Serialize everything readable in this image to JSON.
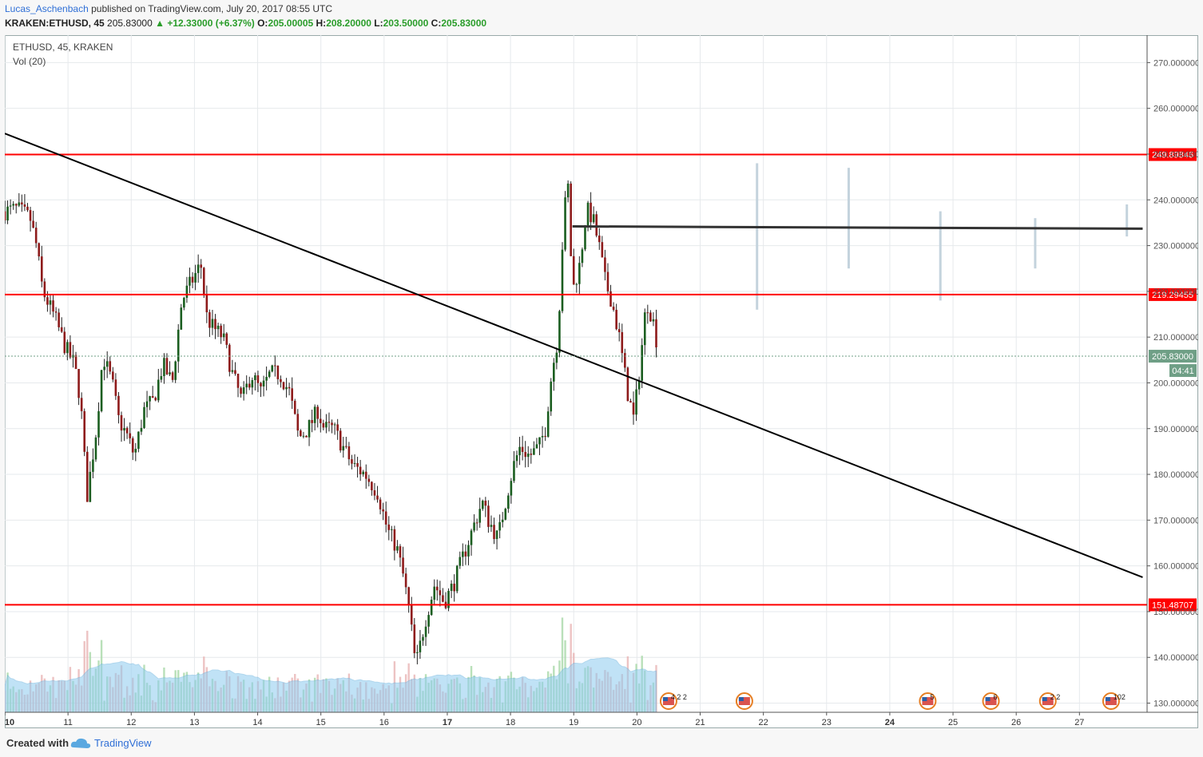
{
  "header": {
    "author": "Lucas_Aschenbach",
    "published_text": "published on TradingView.com, July 20, 2017 08:55 UTC",
    "symbol_line": "KRAKEN:ETHUSD, 45",
    "last": "205.83000",
    "change": "▲ +12.33000 (+6.37%)",
    "o_label": "O:",
    "o": "205.00005",
    "h_label": "H:",
    "h": "208.20000",
    "l_label": "L:",
    "l": "203.50000",
    "c_label": "C:",
    "c": "205.83000"
  },
  "legend": {
    "title": "ETHUSD, 45, KRAKEN",
    "volume": "Vol (20)"
  },
  "footer": {
    "created_with": "Created with",
    "brand": "TradingView"
  },
  "colors": {
    "up": "#1b5e20",
    "down": "#8e1b1b",
    "hline": "#ff0000",
    "trendline": "#000000",
    "resistance": "#333333",
    "vol_area": "#8ecbf0",
    "price_label_bg": "#6f9f86"
  },
  "chart_data": {
    "type": "candlestick",
    "y_axis": {
      "min": 128,
      "max": 276,
      "ticks": [
        "270.000000",
        "260.000000",
        "250.000000",
        "240.000000",
        "230.000000",
        "220.000000",
        "210.000000",
        "200.000000",
        "190.000000",
        "180.000000",
        "170.000000",
        "160.000000",
        "150.000000",
        "140.000000",
        "130.000000"
      ]
    },
    "x_axis": {
      "labels": [
        "10",
        "11",
        "12",
        "13",
        "14",
        "15",
        "16",
        "17",
        "18",
        "19",
        "20",
        "21",
        "22",
        "23",
        "24",
        "25",
        "26",
        "27"
      ],
      "bold_labels": [
        "10",
        "17",
        "24"
      ]
    },
    "horizontal_lines": [
      {
        "label": "249.89846",
        "value": 249.89846
      },
      {
        "label": "219.29455",
        "value": 219.29455
      },
      {
        "label": "151.48707",
        "value": 151.48707
      }
    ],
    "resistance_line": {
      "from": [
        18.98,
        234.2
      ],
      "to": [
        28.0,
        233.7
      ]
    },
    "trend_line": {
      "from": [
        10.0,
        254.5
      ],
      "to": [
        28.0,
        157.5
      ]
    },
    "current_price": {
      "label": "205.83000",
      "value": 205.83,
      "countdown": "04:41"
    },
    "price_path": [
      [
        10.0,
        237.5
      ],
      [
        10.2,
        238
      ],
      [
        10.4,
        236
      ],
      [
        10.5,
        230
      ],
      [
        10.6,
        220
      ],
      [
        10.8,
        214
      ],
      [
        10.95,
        208
      ],
      [
        11.1,
        204
      ],
      [
        11.2,
        196
      ],
      [
        11.3,
        175
      ],
      [
        11.45,
        190
      ],
      [
        11.55,
        206
      ],
      [
        11.7,
        200
      ],
      [
        11.8,
        192
      ],
      [
        11.95,
        188
      ],
      [
        12.05,
        184
      ],
      [
        12.2,
        194
      ],
      [
        12.35,
        196
      ],
      [
        12.5,
        204
      ],
      [
        12.65,
        200
      ],
      [
        12.8,
        218
      ],
      [
        12.95,
        222
      ],
      [
        13.1,
        226
      ],
      [
        13.2,
        214
      ],
      [
        13.3,
        212
      ],
      [
        13.45,
        210
      ],
      [
        13.6,
        202
      ],
      [
        13.75,
        196
      ],
      [
        13.9,
        202
      ],
      [
        14.05,
        198
      ],
      [
        14.2,
        202
      ],
      [
        14.35,
        202
      ],
      [
        14.5,
        198
      ],
      [
        14.65,
        188
      ],
      [
        14.8,
        190
      ],
      [
        14.95,
        194
      ],
      [
        15.05,
        190
      ],
      [
        15.2,
        190
      ],
      [
        15.35,
        186
      ],
      [
        15.5,
        182
      ],
      [
        15.7,
        180
      ],
      [
        15.9,
        176
      ],
      [
        16.05,
        168
      ],
      [
        16.2,
        164
      ],
      [
        16.3,
        158
      ],
      [
        16.4,
        150
      ],
      [
        16.5,
        138
      ],
      [
        16.65,
        148
      ],
      [
        16.8,
        156
      ],
      [
        16.95,
        152
      ],
      [
        17.1,
        156
      ],
      [
        17.25,
        162
      ],
      [
        17.4,
        168
      ],
      [
        17.55,
        174
      ],
      [
        17.65,
        170
      ],
      [
        17.8,
        166
      ],
      [
        17.95,
        176
      ],
      [
        18.05,
        182
      ],
      [
        18.15,
        186
      ],
      [
        18.3,
        184
      ],
      [
        18.45,
        186
      ],
      [
        18.55,
        190
      ],
      [
        18.65,
        202
      ],
      [
        18.75,
        210
      ],
      [
        18.82,
        230
      ],
      [
        18.9,
        246
      ],
      [
        18.98,
        220
      ],
      [
        19.1,
        226
      ],
      [
        19.2,
        238
      ],
      [
        19.3,
        236
      ],
      [
        19.4,
        230
      ],
      [
        19.5,
        222
      ],
      [
        19.6,
        218
      ],
      [
        19.72,
        210
      ],
      [
        19.85,
        198
      ],
      [
        19.95,
        192
      ],
      [
        20.05,
        204
      ],
      [
        20.15,
        218
      ],
      [
        20.25,
        214
      ],
      [
        20.35,
        206
      ]
    ],
    "volume_bars_approx": "dense histogram along bottom with moving-average area (Vol 20)",
    "event_markers": [
      {
        "x": 20.5,
        "label": "4 2 2"
      },
      {
        "x": 21.7,
        "label": ""
      },
      {
        "x": 24.6,
        "label": "5"
      },
      {
        "x": 25.6,
        "label": "6"
      },
      {
        "x": 26.5,
        "label": "2 2"
      },
      {
        "x": 27.5,
        "label": "102"
      }
    ],
    "projection_ghost_bars": [
      {
        "x": 21.9,
        "low": 216,
        "high": 248
      },
      {
        "x": 23.35,
        "low": 225,
        "high": 247
      },
      {
        "x": 24.8,
        "low": 218,
        "high": 237.5
      },
      {
        "x": 26.3,
        "low": 225,
        "high": 236
      },
      {
        "x": 27.75,
        "low": 232,
        "high": 239
      }
    ]
  }
}
